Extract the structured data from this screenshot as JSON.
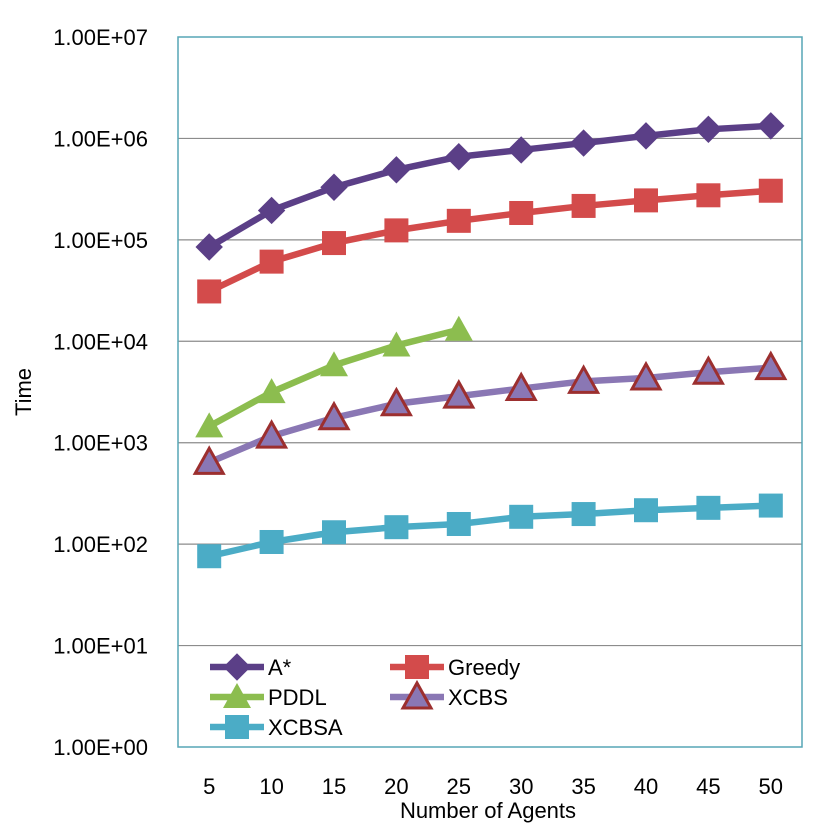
{
  "chart_data": {
    "type": "line",
    "title": "",
    "xlabel": "Number of Agents",
    "ylabel": "Time",
    "yscale": "log",
    "ylim": [
      1,
      10000000
    ],
    "y_ticks": [
      {
        "value": 1,
        "label": "1.00E+00"
      },
      {
        "value": 10,
        "label": "1.00E+01"
      },
      {
        "value": 100,
        "label": "1.00E+02"
      },
      {
        "value": 1000,
        "label": "1.00E+03"
      },
      {
        "value": 10000,
        "label": "1.00E+04"
      },
      {
        "value": 100000,
        "label": "1.00E+05"
      },
      {
        "value": 1000000,
        "label": "1.00E+06"
      },
      {
        "value": 10000000,
        "label": "1.00E+07"
      }
    ],
    "categories": [
      "5",
      "10",
      "15",
      "20",
      "25",
      "30",
      "35",
      "40",
      "45",
      "50"
    ],
    "grid": true,
    "legend_position": "bottom-left",
    "series": [
      {
        "name": "A*",
        "color": "#5b3f87",
        "marker": "diamond",
        "values": [
          85000,
          195000,
          330000,
          490000,
          660000,
          770000,
          900000,
          1060000,
          1230000,
          1330000
        ]
      },
      {
        "name": "Greedy",
        "color": "#d34b4b",
        "marker": "square",
        "values": [
          31000,
          61000,
          93000,
          124000,
          154000,
          184000,
          216000,
          245000,
          275000,
          305000
        ]
      },
      {
        "name": "PDDL",
        "color": "#8cbd4f",
        "marker": "triangle",
        "values": [
          1450,
          3150,
          5800,
          9100,
          13000,
          null,
          null,
          null,
          null,
          null
        ]
      },
      {
        "name": "XCBS",
        "color": "#8a77b4",
        "marker": "triangle-outlined",
        "marker_edge_color": "#9c2f2f",
        "values": [
          640,
          1160,
          1760,
          2420,
          2880,
          3420,
          4030,
          4350,
          4950,
          5500
        ]
      },
      {
        "name": "XCBSA",
        "color": "#4bacc6",
        "marker": "square",
        "values": [
          76,
          105,
          131,
          147,
          158,
          186,
          198,
          216,
          228,
          240
        ]
      }
    ]
  }
}
